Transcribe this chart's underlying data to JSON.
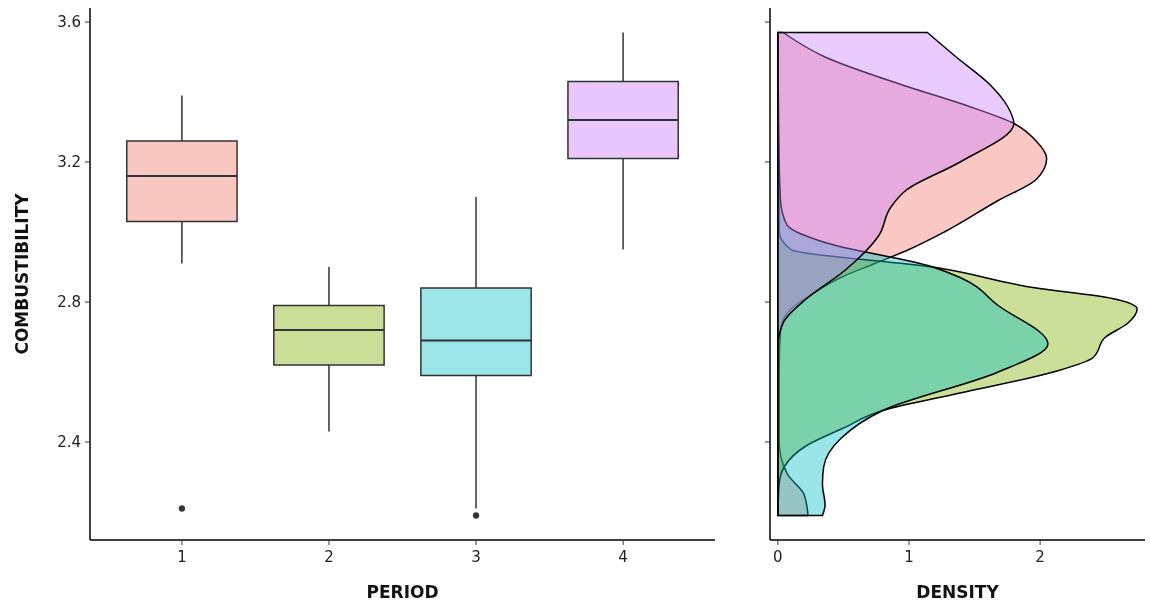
{
  "chart_data": [
    {
      "type": "box",
      "categories": [
        "1",
        "2",
        "3",
        "4"
      ],
      "xlabel": "PERIOD",
      "ylabel": "COMBUSTIBILITY",
      "ylim": [
        2.12,
        3.64
      ],
      "yticks": [
        2.4,
        2.8,
        3.2,
        3.6
      ],
      "colors": [
        "#f9c6c2",
        "#cbde98",
        "#9ae6e8",
        "#e8c8fc"
      ],
      "boxes": [
        {
          "low": 2.91,
          "q1": 3.03,
          "median": 3.16,
          "q3": 3.26,
          "high": 3.39,
          "outliers": [
            2.21
          ]
        },
        {
          "low": 2.43,
          "q1": 2.62,
          "median": 2.72,
          "q3": 2.79,
          "high": 2.9
        },
        {
          "low": 2.21,
          "q1": 2.59,
          "median": 2.69,
          "q3": 2.84,
          "high": 3.1,
          "outliers": [
            2.19
          ]
        },
        {
          "low": 2.95,
          "q1": 3.21,
          "median": 3.32,
          "q3": 3.43,
          "high": 3.57
        }
      ]
    },
    {
      "type": "area",
      "orientation": "horizontal",
      "xlabel": "DENSITY",
      "xlim": [
        -0.06,
        2.8
      ],
      "xticks": [
        0,
        1,
        2
      ],
      "ylim": [
        2.12,
        3.64
      ],
      "yticks": [
        2.4,
        2.8,
        3.2,
        3.6
      ],
      "tick_labels": "x",
      "series": [
        {
          "color": "#f8766d",
          "x": [
            3.57,
            3.5,
            3.42,
            3.36,
            3.31,
            3.26,
            3.21,
            3.15,
            3.09,
            3.0,
            2.95,
            2.91,
            2.87,
            2.82,
            2.78,
            2.72,
            2.6,
            2.4,
            2.31,
            2.25,
            2.19
          ],
          "values": [
            0.04,
            0.36,
            0.95,
            1.45,
            1.8,
            1.97,
            2.05,
            1.97,
            1.68,
            1.27,
            1.0,
            0.74,
            0.48,
            0.25,
            0.1,
            0.02,
            0.01,
            0.01,
            0.07,
            0.2,
            0.23
          ]
        },
        {
          "color": "#7cae00",
          "x": [
            3.57,
            3.0,
            2.95,
            2.9,
            2.84,
            2.81,
            2.78,
            2.74,
            2.7,
            2.64,
            2.6,
            2.54,
            2.49,
            2.44,
            2.39,
            2.33,
            2.28,
            2.19
          ],
          "values": [
            0,
            0.01,
            0.1,
            1.18,
            1.97,
            2.55,
            2.74,
            2.67,
            2.5,
            2.4,
            2.1,
            1.39,
            0.8,
            0.5,
            0.22,
            0.05,
            0.01,
            0
          ]
        },
        {
          "color": "#00bfc4",
          "x": [
            3.57,
            3.3,
            3.09,
            3.02,
            2.97,
            2.9,
            2.87,
            2.79,
            2.68,
            2.6,
            2.49,
            2.41,
            2.33,
            2.28,
            2.22,
            2.19
          ],
          "values": [
            0,
            0.005,
            0.02,
            0.07,
            0.36,
            1.18,
            1.39,
            1.68,
            2.06,
            1.68,
            0.8,
            0.48,
            0.35,
            0.34,
            0.36,
            0.34
          ]
        },
        {
          "color": "#c77cff",
          "x": [
            3.57,
            3.5,
            3.42,
            3.36,
            3.31,
            3.2,
            3.12,
            3.07,
            2.99,
            2.89,
            2.81,
            2.74,
            2.67,
            2.19
          ],
          "values": [
            1.14,
            1.36,
            1.62,
            1.75,
            1.8,
            1.39,
            0.98,
            0.86,
            0.77,
            0.51,
            0.22,
            0.04,
            0,
            0
          ]
        }
      ]
    }
  ]
}
